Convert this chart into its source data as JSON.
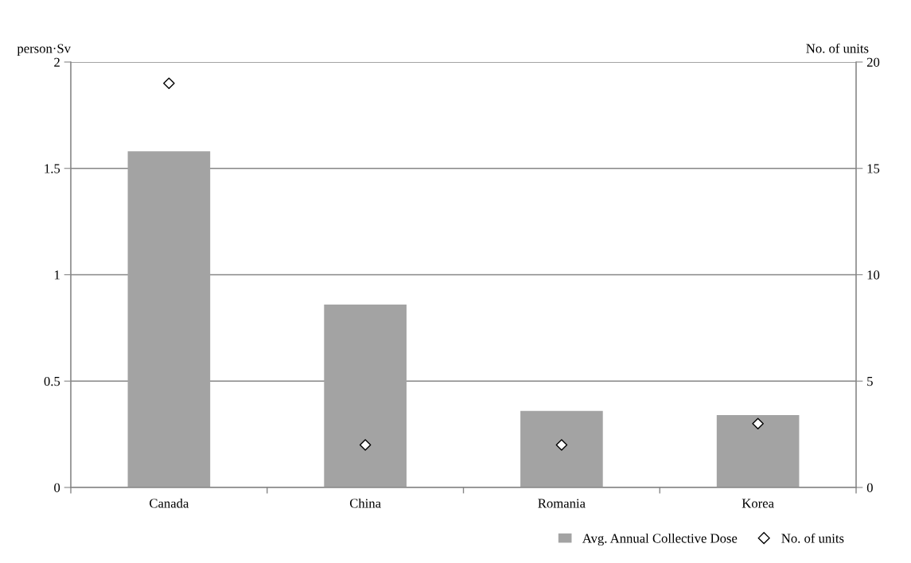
{
  "chart_data": {
    "type": "bar",
    "categories": [
      "Canada",
      "China",
      "Romania",
      "Korea"
    ],
    "series": [
      {
        "name": "Avg. Annual Collective Dose",
        "color": "#a3a3a3",
        "values": [
          1.58,
          0.86,
          0.36,
          0.34
        ]
      },
      {
        "name": "No. of units",
        "type": "scatter",
        "axis": "y2",
        "marker": "diamond",
        "color": "#ffffff",
        "values": [
          19,
          2,
          2,
          3
        ]
      }
    ],
    "ylabel": "person·Sv",
    "y2label": "No. of units",
    "ylim": [
      0,
      2
    ],
    "yticks": [
      0,
      0.5,
      1,
      1.5,
      2
    ],
    "y2lim": [
      0,
      20
    ],
    "y2ticks": [
      0,
      5,
      10,
      15,
      20
    ],
    "grid": "y",
    "legend": "bottom right"
  }
}
